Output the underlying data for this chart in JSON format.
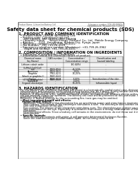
{
  "bg_color": "#ffffff",
  "header_left": "Product Name: Lithium Ion Battery Cell",
  "header_right_line1": "Substance number: SDS-LIB-000019",
  "header_right_line2": "Establishment / Revision: Dec.7.2009",
  "title": "Safety data sheet for chemical products (SDS)",
  "section1_header": "1. PRODUCT AND COMPANY IDENTIFICATION",
  "section1_items": [
    "  • Product name: Lithium Ion Battery Cell",
    "  • Product code: Cylindrical type cell",
    "      SNT-18650U, SNT-18650L, SNT-18650A",
    "  • Company name:     Sanyo Energy (Suzhou) Co., Ltd.  Mobile Energy Company",
    "  • Address:     2221  Kanchiatun, Suzhou City, Hyogo, Japan",
    "  • Telephone number:  +81-/799-26-4111",
    "  • Fax number:  +81-799-26-4129",
    "  • Emergency telephone number (Weekdays): +81-799-26-3962",
    "      (Night and holiday): +81-799-26-4101"
  ],
  "section2_header": "2. COMPOSITION / INFORMATION ON INGREDIENTS",
  "section2_sub1": "  • Substance or preparation: Preparation",
  "section2_sub2": "  • Information about the chemical nature of product:",
  "table_col_names": [
    "Chemical name\n(by Name)",
    "CAS number",
    "Concentration /\nConcentration range\n(30-80%)",
    "Classification and\nhazard labeling"
  ],
  "table_rows": [
    [
      "Lithium cobalt oxide\n(LiMn2 CoO(Co))",
      "-",
      "-",
      "-"
    ],
    [
      "Iron",
      "7439-89-6",
      "45-50%",
      "-"
    ],
    [
      "Aluminum",
      "7429-90-5",
      "2-5%",
      "-"
    ],
    [
      "Graphite\n(black or graphite-I)\n(4785 or graphite)",
      "7782-42-5\n7440-44-0\n7440-44-0",
      "10-25%",
      "-"
    ],
    [
      "Copper",
      "7440-50-8",
      "5-10%",
      "Sensitization of the skin"
    ],
    [
      "Separator",
      "-",
      "3-10%",
      "-"
    ],
    [
      "Organic electrolyte",
      "-",
      "10-20%",
      "Inflammable liquid"
    ]
  ],
  "section3_header": "3. HAZARDS IDENTIFICATION",
  "section3_para": [
    "  For this battery cell, chemical materials are stored in a hermetically sealed metal case, designed to withstand",
    "  temperatures and pressures encountered during normal use. As a result, during normal use, there is no",
    "  physical danger of explosion or vaporization and minimal chance of leakage.",
    "  However, if exposed to a fire, added mechanical shocks, decompressed, ambient electro without any miss-use,",
    "  the gas releases carbon for operated. The battery cell case will be protected at this particular, flammable/toxic",
    "  materials may be released.",
    "  Moreover, if heated strongly by the surrounding fire, toxic gas may be emitted."
  ],
  "section3_bullet1": "  • Most important hazard and effects:",
  "section3_human": "    Human health effects:",
  "section3_inhalation": [
    "      Inhalation: The release of the electrolyte has an anesthesia action and stimulates a respiratory tract.",
    "      Skin contact: The release of the electrolyte stimulates a skin. The electrolyte skin contact causes a",
    "      sore and stimulation of the skin.",
    "      Eye contact: The release of the electrolyte stimulates eyes. The electrolyte eye contact causes a sore",
    "      and stimulation on the eye. Especially, a substance that causes a strong inflammation of the eyes is",
    "      contained."
  ],
  "section3_env": [
    "      Environmental effects: Since a battery cell remains in the environment, do not throw out it into the",
    "      environment."
  ],
  "section3_bullet2": "  • Specific hazards:",
  "section3_specific": [
    "      If the electrolyte contacts with water, it will generate detrimental hydrogen fluoride.",
    "      Since the lead electrolyte is inflammable liquid, do not bring close to fire."
  ],
  "text_color": "#000000",
  "gray_color": "#555555",
  "light_gray": "#aaaaaa"
}
